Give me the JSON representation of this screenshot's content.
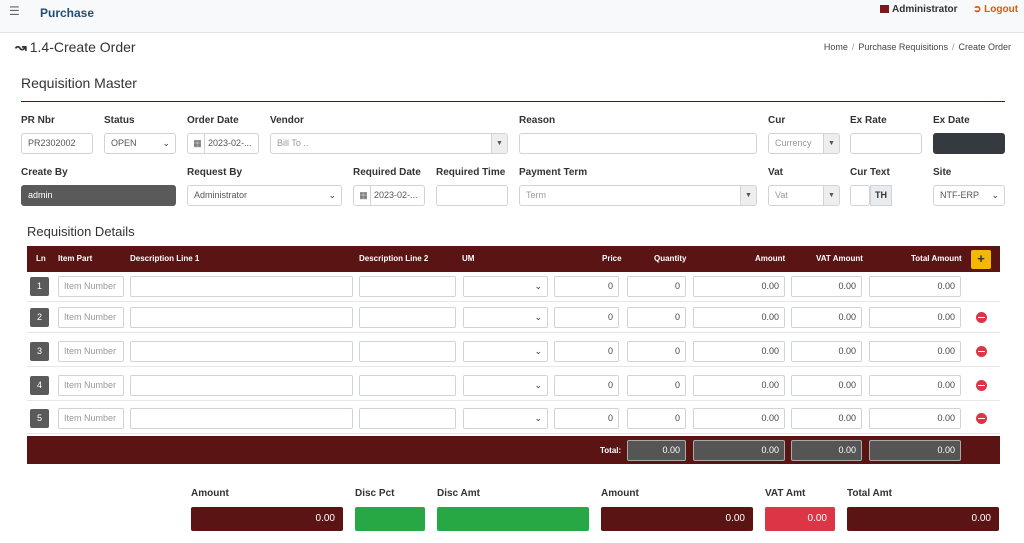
{
  "topbar": {
    "menu_icon": "hamburger-icon",
    "brand": "Purchase",
    "user": "Administrator",
    "logout": "Logout"
  },
  "page": {
    "title": "1.4-Create Order",
    "breadcrumb": [
      "Home",
      "Purchase Requisitions",
      "Create Order"
    ]
  },
  "master": {
    "title": "Requisition Master",
    "pr_nbr": {
      "label": "PR Nbr",
      "value": "PR2302002"
    },
    "status": {
      "label": "Status",
      "value": "OPEN"
    },
    "order_date": {
      "label": "Order Date",
      "value": "2023-02-..."
    },
    "vendor": {
      "label": "Vendor",
      "placeholder": "Bill To .."
    },
    "reason": {
      "label": "Reason",
      "value": ""
    },
    "cur": {
      "label": "Cur",
      "placeholder": "Currency"
    },
    "ex_rate": {
      "label": "Ex Rate",
      "value": ""
    },
    "ex_date": {
      "label": "Ex Date",
      "value": ""
    },
    "create_by": {
      "label": "Create By",
      "value": "admin"
    },
    "request_by": {
      "label": "Request By",
      "value": "Administrator"
    },
    "required_date": {
      "label": "Required Date",
      "value": "2023-02-..."
    },
    "required_time": {
      "label": "Required Time",
      "value": ""
    },
    "payment_term": {
      "label": "Payment Term",
      "placeholder": "Term"
    },
    "vat": {
      "label": "Vat",
      "placeholder": "Vat"
    },
    "cur_text": {
      "label": "Cur Text",
      "value": "TH"
    },
    "site": {
      "label": "Site",
      "value": "NTF-ERP"
    }
  },
  "details": {
    "title": "Requisition Details",
    "columns": [
      "Ln",
      "Item Part",
      "Description Line 1",
      "Description Line 2",
      "UM",
      "Price",
      "Quantity",
      "Amount",
      "VAT Amount",
      "Total Amount"
    ],
    "add_label": "+",
    "item_placeholder": "Item Number",
    "rows": [
      {
        "ln": "1",
        "price": "0",
        "qty": "0",
        "amount": "0.00",
        "vat": "0.00",
        "total": "0.00"
      },
      {
        "ln": "2",
        "price": "0",
        "qty": "0",
        "amount": "0.00",
        "vat": "0.00",
        "total": "0.00"
      },
      {
        "ln": "3",
        "price": "0",
        "qty": "0",
        "amount": "0.00",
        "vat": "0.00",
        "total": "0.00"
      },
      {
        "ln": "4",
        "price": "0",
        "qty": "0",
        "amount": "0.00",
        "vat": "0.00",
        "total": "0.00"
      },
      {
        "ln": "5",
        "price": "0",
        "qty": "0",
        "amount": "0.00",
        "vat": "0.00",
        "total": "0.00"
      }
    ],
    "total_label": "Total:",
    "totals": {
      "qty": "0.00",
      "amount": "0.00",
      "vat": "0.00",
      "total": "0.00"
    }
  },
  "summary": {
    "amount": {
      "label": "Amount",
      "value": "0.00"
    },
    "disc_pct": {
      "label": "Disc Pct",
      "value": ""
    },
    "disc_amt": {
      "label": "Disc Amt",
      "value": ""
    },
    "amount2": {
      "label": "Amount",
      "value": "0.00"
    },
    "vat_amt": {
      "label": "VAT Amt",
      "value": "0.00"
    },
    "total_amt": {
      "label": "Total Amt",
      "value": "0.00"
    }
  },
  "colors": {
    "brand": "#1f4e79",
    "header_bg": "#5a1414",
    "accent_yellow": "#f5b800",
    "green": "#28a745",
    "red": "#dc3545",
    "logout": "#e05a00"
  }
}
